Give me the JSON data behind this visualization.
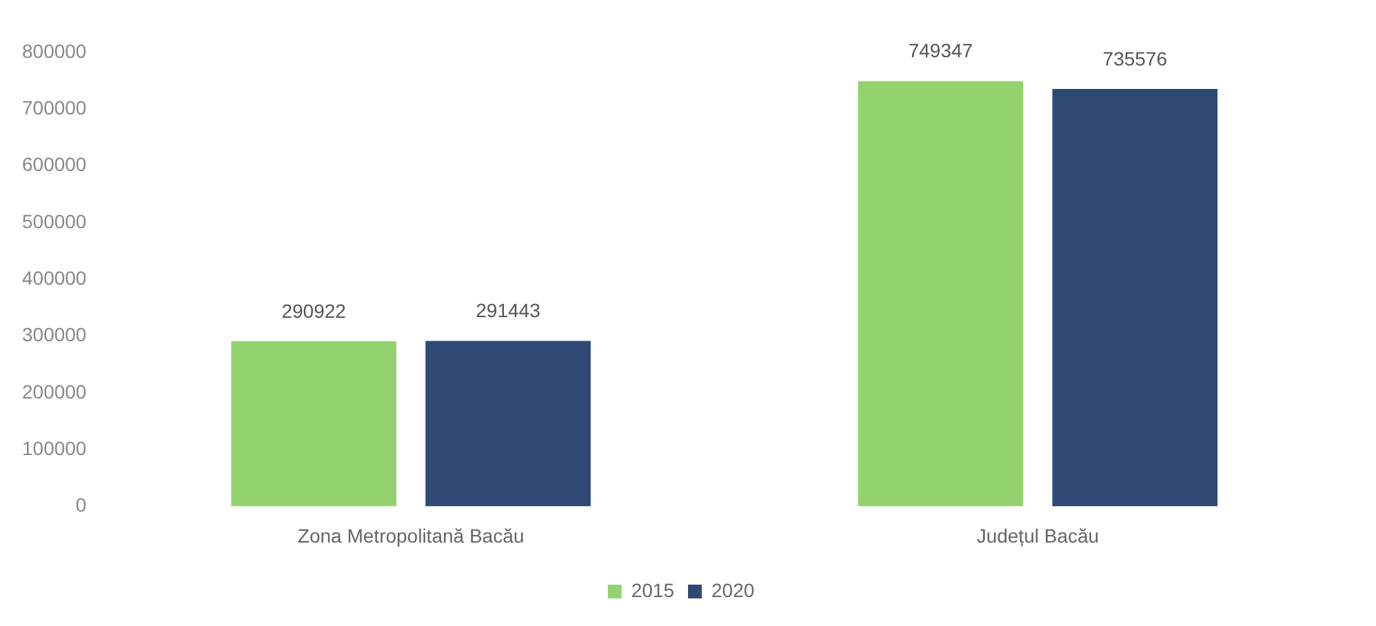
{
  "chart_data": {
    "type": "bar",
    "categories": [
      "Zona Metropolitană Bacău",
      "Județul Bacău"
    ],
    "series": [
      {
        "name": "2015",
        "color": "#92d36e",
        "values": [
          290922,
          749347
        ]
      },
      {
        "name": "2020",
        "color": "#2e4a74",
        "values": [
          291443,
          735576
        ]
      }
    ],
    "ylim": [
      0,
      800000
    ],
    "yticks": [
      0,
      100000,
      200000,
      300000,
      400000,
      500000,
      600000,
      700000,
      800000
    ],
    "grid": false,
    "legend": "bottom",
    "data_labels": true
  }
}
